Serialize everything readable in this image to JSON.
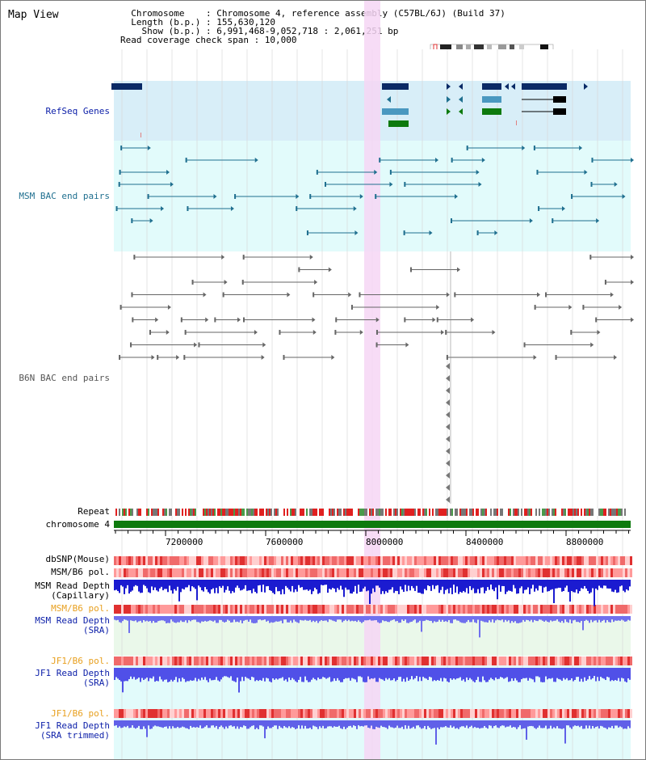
{
  "header": {
    "title": "Map View",
    "info_lines": [
      "  Chromosome    : Chromosome 4, reference assembly (C57BL/6J) (Build 37)",
      "  Length (b.p.) : 155,630,120",
      "    Show (b.p.) : 6,991,468-9,052,718 : 2,061,251 bp",
      "Read coverage check span : 10,000"
    ]
  },
  "tracks": {
    "refseq": {
      "label": "RefSeq Genes",
      "color": "#0b1ea8"
    },
    "msm_bac": {
      "label": "MSM BAC end pairs",
      "color": "#1f6f8f"
    },
    "b6n_bac": {
      "label": "B6N BAC end pairs",
      "color": "#555555"
    },
    "repeat": {
      "label": "Repeat"
    },
    "chromosome": {
      "label": "chromosome 4"
    },
    "dbsnp": {
      "label": "dbSNP(Mouse)"
    },
    "msm_b6_pol": {
      "label": "MSM/B6 pol."
    },
    "msm_depth_cap": {
      "label_lines": [
        "MSM Read Depth",
        "(Capillary)"
      ]
    },
    "msm_b6_pol_sra": {
      "label": "MSM/B6 pol."
    },
    "msm_depth_sra": {
      "label_lines": [
        "MSM Read Depth",
        "(SRA)"
      ]
    },
    "jf1_b6_pol": {
      "label": "JF1/B6 pol."
    },
    "jf1_depth_sra": {
      "label_lines": [
        "JF1 Read Depth",
        "(SRA)"
      ]
    },
    "jf1_b6_pol_trim": {
      "label": "JF1/B6 pol."
    },
    "jf1_depth_trim": {
      "label_lines": [
        "JF1 Read Depth",
        "(SRA trimmed)"
      ]
    }
  },
  "axis": {
    "ticks": [
      "7200000",
      "7600000",
      "8000000",
      "8400000",
      "8800000"
    ]
  },
  "colors": {
    "refseq_bg": "#d8eef8",
    "bac_bg": "#e2fbfb",
    "highlight": "#f6d6f4",
    "chromosome": "#0e7a0e",
    "pol_orange": "#e8a020",
    "depth_blue": "#1b1bd0"
  }
}
